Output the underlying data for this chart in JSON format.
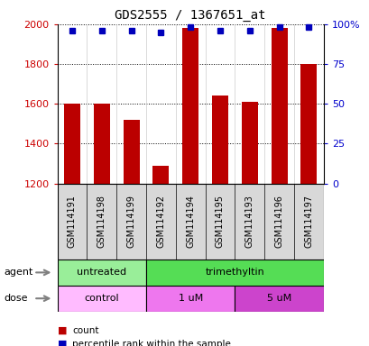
{
  "title": "GDS2555 / 1367651_at",
  "samples": [
    "GSM114191",
    "GSM114198",
    "GSM114199",
    "GSM114192",
    "GSM114194",
    "GSM114195",
    "GSM114193",
    "GSM114196",
    "GSM114197"
  ],
  "counts": [
    1600,
    1600,
    1520,
    1290,
    1980,
    1640,
    1610,
    1980,
    1800
  ],
  "percentiles": [
    96,
    96,
    96,
    95,
    98,
    96,
    96,
    98,
    98
  ],
  "bar_color": "#bb0000",
  "dot_color": "#0000bb",
  "ymin": 1200,
  "ymax": 2000,
  "yticks": [
    1200,
    1400,
    1600,
    1800,
    2000
  ],
  "right_yticks": [
    0,
    25,
    50,
    75,
    100
  ],
  "agent_groups": [
    {
      "label": "untreated",
      "start": 0,
      "end": 3,
      "color": "#99ee99"
    },
    {
      "label": "trimethyltin",
      "start": 3,
      "end": 9,
      "color": "#55dd55"
    }
  ],
  "dose_groups": [
    {
      "label": "control",
      "start": 0,
      "end": 3,
      "color": "#ffbbff"
    },
    {
      "label": "1 uM",
      "start": 3,
      "end": 6,
      "color": "#ee77ee"
    },
    {
      "label": "5 uM",
      "start": 6,
      "end": 9,
      "color": "#cc44cc"
    }
  ],
  "sample_bg_color": "#d8d8d8",
  "sample_sep_color": "#aaaaaa",
  "legend_count_color": "#bb0000",
  "legend_dot_color": "#0000bb",
  "tick_label_color_left": "#cc0000",
  "tick_label_color_right": "#0000cc",
  "bar_width": 0.55,
  "dot_size": 5,
  "agent_label": "agent",
  "dose_label": "dose"
}
